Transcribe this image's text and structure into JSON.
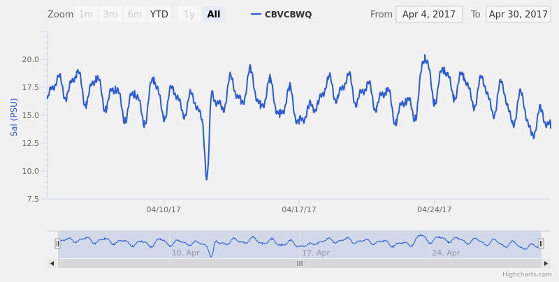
{
  "range_selector": {
    "zoom_label": "Zoom",
    "buttons": [
      {
        "label": "1m",
        "state": "disabled"
      },
      {
        "label": "3m",
        "state": "disabled"
      },
      {
        "label": "6m",
        "state": "disabled"
      },
      {
        "label": "YTD",
        "state": "enabled"
      },
      {
        "label": "1y",
        "state": "disabled"
      },
      {
        "label": "All",
        "state": "selected"
      }
    ],
    "from_label": "From",
    "from_value": "Apr 4, 2017",
    "to_label": "To",
    "to_value": "Apr 30, 2017"
  },
  "navigator": {
    "x_ticks": [
      {
        "day": 10,
        "label": "10. Apr"
      },
      {
        "day": 17,
        "label": "17. Apr"
      },
      {
        "day": 24,
        "label": "24. Apr"
      }
    ]
  },
  "credits": "Highcharts.com",
  "colors": {
    "series": "#2b5bd1",
    "axis": "#ccd6eb",
    "navigator_fill": "#c6cfe6",
    "scrollbar": "#d8d8d8"
  },
  "chart_data": {
    "type": "line",
    "title": "",
    "xlabel": "",
    "ylabel": "Sal (PSU)",
    "ylim": [
      7.5,
      22.5
    ],
    "y_ticks": [
      7.5,
      10.0,
      12.5,
      15.0,
      17.5,
      20.0
    ],
    "x_range": [
      "2017-04-04",
      "2017-04-30"
    ],
    "x_ticks": [
      {
        "date": "2017-04-10",
        "label": "04/10/17"
      },
      {
        "date": "2017-04-17",
        "label": "04/17/17"
      },
      {
        "date": "2017-04-24",
        "label": "04/24/17"
      }
    ],
    "legend": {
      "position": "top-center"
    },
    "series": [
      {
        "name": "CBVCBWQ",
        "color": "#2b5bd1",
        "x": [
          "2017-04-04",
          "2017-04-04 12:00",
          "2017-04-05",
          "2017-04-05 12:00",
          "2017-04-06",
          "2017-04-06 12:00",
          "2017-04-07",
          "2017-04-07 12:00",
          "2017-04-08",
          "2017-04-08 12:00",
          "2017-04-09",
          "2017-04-09 12:00",
          "2017-04-10",
          "2017-04-10 12:00",
          "2017-04-11",
          "2017-04-11 12:00",
          "2017-04-12",
          "2017-04-12 06:00",
          "2017-04-12 12:00",
          "2017-04-13",
          "2017-04-13 12:00",
          "2017-04-14",
          "2017-04-14 12:00",
          "2017-04-15",
          "2017-04-15 12:00",
          "2017-04-16",
          "2017-04-16 12:00",
          "2017-04-17",
          "2017-04-17 12:00",
          "2017-04-18",
          "2017-04-18 12:00",
          "2017-04-19",
          "2017-04-19 12:00",
          "2017-04-20",
          "2017-04-20 12:00",
          "2017-04-21",
          "2017-04-21 12:00",
          "2017-04-22",
          "2017-04-22 12:00",
          "2017-04-23",
          "2017-04-23 12:00",
          "2017-04-24",
          "2017-04-24 12:00",
          "2017-04-25",
          "2017-04-25 12:00",
          "2017-04-26",
          "2017-04-26 12:00",
          "2017-04-27",
          "2017-04-27 12:00",
          "2017-04-28",
          "2017-04-28 12:00",
          "2017-04-29",
          "2017-04-29 12:00",
          "2017-04-30"
        ],
        "y": [
          16.5,
          18.3,
          16.8,
          18.9,
          16.2,
          18.5,
          15.8,
          17.6,
          14.8,
          17.2,
          14.5,
          18.4,
          15.0,
          17.5,
          15.2,
          16.8,
          14.4,
          9.5,
          17.0,
          15.5,
          18.2,
          16.0,
          18.8,
          15.6,
          17.9,
          14.8,
          17.2,
          14.2,
          15.6,
          16.0,
          18.2,
          16.5,
          18.5,
          16.2,
          17.8,
          15.8,
          17.4,
          14.6,
          16.5,
          15.0,
          20.4,
          16.4,
          19.3,
          16.8,
          18.7,
          16.0,
          18.3,
          15.2,
          17.8,
          14.3,
          16.8,
          13.2,
          15.3,
          13.8
        ]
      }
    ]
  }
}
